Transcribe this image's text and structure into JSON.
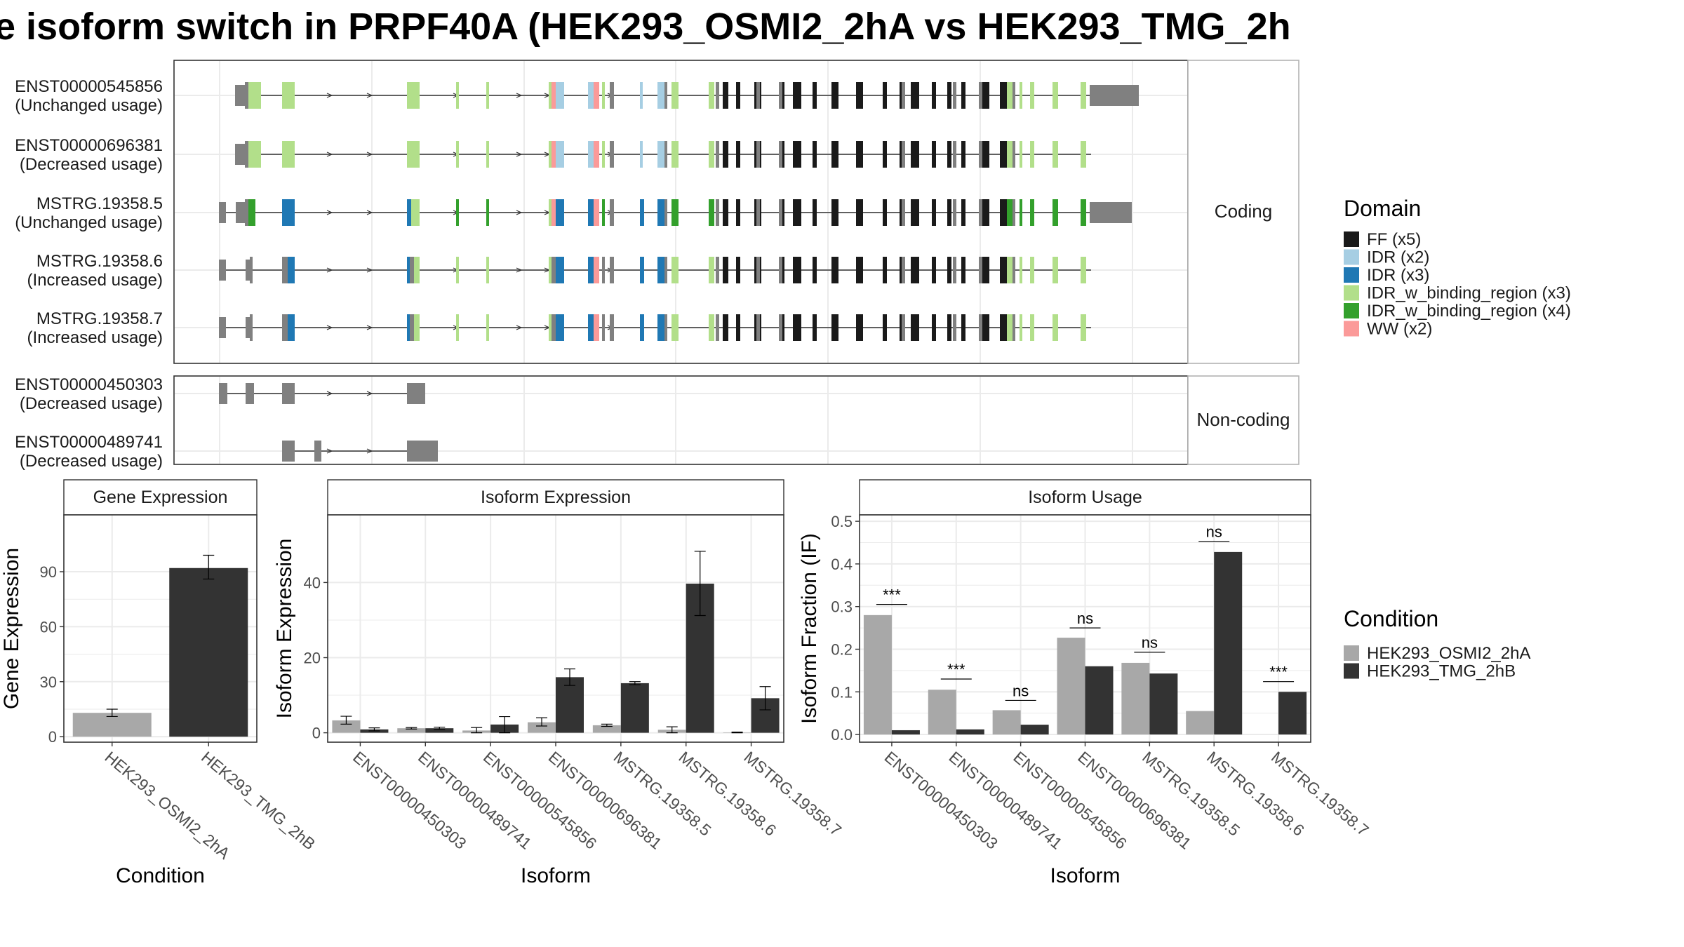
{
  "title": "e isoform switch in PRPF40A (HEK293_OSMI2_2hA vs HEK293_TMG_2h",
  "colors": {
    "FF": "#1a1a1a",
    "IDR": "#a6cee3",
    "IDR3": "#1f78b4",
    "IDRb3": "#b2df8a",
    "IDRb4": "#33a02c",
    "WW": "#fb9a99",
    "utr": "#808080",
    "cond1": "#a8a8a8",
    "cond2": "#333333",
    "grid": "#ebebeb",
    "panel_border": "#333333",
    "strip_border": "#b3b3b3",
    "strip_bg": "#ffffff"
  },
  "isoforms": {
    "coding_strip": "Coding",
    "noncoding_strip": "Non-coding",
    "coding_tracks": [
      {
        "id": "ENST00000545856",
        "usage": "(Unchanged usage)"
      },
      {
        "id": "ENST00000696381",
        "usage": "(Decreased usage)"
      },
      {
        "id": "MSTRG.19358.5",
        "usage": "(Unchanged usage)"
      },
      {
        "id": "MSTRG.19358.6",
        "usage": "(Increased usage)"
      },
      {
        "id": "MSTRG.19358.7",
        "usage": "(Increased usage)"
      }
    ],
    "noncoding_tracks": [
      {
        "id": "ENST00000450303",
        "usage": "(Decreased usage)"
      },
      {
        "id": "ENST00000489741",
        "usage": "(Decreased usage)"
      }
    ]
  },
  "domain_legend": {
    "title": "Domain",
    "items": [
      {
        "label": "FF (x5)",
        "color": "#1a1a1a"
      },
      {
        "label": "IDR (x2)",
        "color": "#a6cee3"
      },
      {
        "label": "IDR (x3)",
        "color": "#1f78b4"
      },
      {
        "label": "IDR_w_binding_region (x3)",
        "color": "#b2df8a"
      },
      {
        "label": "IDR_w_binding_region (x4)",
        "color": "#33a02c"
      },
      {
        "label": "WW (x2)",
        "color": "#fb9a99"
      }
    ]
  },
  "condition_legend": {
    "title": "Condition",
    "items": [
      {
        "label": "HEK293_OSMI2_2hA",
        "color": "#a8a8a8"
      },
      {
        "label": "HEK293_TMG_2hB",
        "color": "#333333"
      }
    ]
  },
  "chart_data": [
    {
      "type": "bar",
      "title": "Gene Expression",
      "xlabel": "Condition",
      "ylabel": "Gene Expression",
      "categories": [
        "HEK293_OSMI2_2hA",
        "HEK293_TMG_2hB"
      ],
      "values": [
        13,
        92
      ],
      "errors": [
        [
          11,
          15
        ],
        [
          86,
          99
        ]
      ],
      "ylim": [
        -3,
        121
      ],
      "yticks": [
        0,
        30,
        60,
        90
      ],
      "grid": true
    },
    {
      "type": "bar",
      "title": "Isoform Expression",
      "xlabel": "Isoform",
      "ylabel": "Isoform Expression",
      "categories": [
        "ENST00000450303",
        "ENST00000489741",
        "ENST00000545856",
        "ENST00000696381",
        "MSTRG.19358.5",
        "MSTRG.19358.6",
        "MSTRG.19358.7"
      ],
      "series": [
        {
          "name": "HEK293_OSMI2_2hA",
          "values": [
            3.3,
            1.2,
            0.6,
            2.8,
            2.0,
            0.8,
            0.1
          ],
          "errors": [
            [
              2.3,
              4.4
            ],
            [
              1.0,
              1.4
            ],
            [
              0.0,
              1.4
            ],
            [
              1.8,
              4.0
            ],
            [
              1.7,
              2.3
            ],
            [
              0.0,
              1.6
            ],
            [
              0.0,
              0.2
            ]
          ]
        },
        {
          "name": "HEK293_TMG_2hB",
          "values": [
            0.9,
            1.2,
            2.2,
            14.8,
            13.2,
            39.7,
            9.2
          ],
          "errors": [
            [
              0.5,
              1.3
            ],
            [
              0.9,
              1.5
            ],
            [
              0.0,
              4.3
            ],
            [
              12.6,
              17.0
            ],
            [
              12.8,
              13.6
            ],
            [
              31.2,
              48.3
            ],
            [
              6.1,
              12.3
            ]
          ]
        }
      ],
      "ylim": [
        -2.5,
        58
      ],
      "yticks": [
        0,
        20,
        40
      ],
      "grid": true
    },
    {
      "type": "bar",
      "title": "Isoform Usage",
      "xlabel": "Isoform",
      "ylabel": "Isoform Fraction (IF)",
      "categories": [
        "ENST00000450303",
        "ENST00000489741",
        "ENST00000545856",
        "ENST00000696381",
        "MSTRG.19358.5",
        "MSTRG.19358.6",
        "MSTRG.19358.7"
      ],
      "series": [
        {
          "name": "HEK293_OSMI2_2hA",
          "values": [
            0.28,
            0.105,
            0.057,
            0.227,
            0.168,
            0.055,
            0.0
          ]
        },
        {
          "name": "HEK293_TMG_2hB",
          "values": [
            0.01,
            0.012,
            0.023,
            0.16,
            0.143,
            0.428,
            0.1
          ]
        }
      ],
      "significance": [
        {
          "label": "***",
          "y": 0.305
        },
        {
          "label": "***",
          "y": 0.13
        },
        {
          "label": "ns",
          "y": 0.08
        },
        {
          "label": "ns",
          "y": 0.25
        },
        {
          "label": "ns",
          "y": 0.193
        },
        {
          "label": "ns",
          "y": 0.453
        },
        {
          "label": "***",
          "y": 0.124
        }
      ],
      "ylim": [
        -0.018,
        0.515
      ],
      "yticks": [
        0.0,
        0.1,
        0.2,
        0.3,
        0.4,
        0.5
      ],
      "grid": true
    }
  ]
}
